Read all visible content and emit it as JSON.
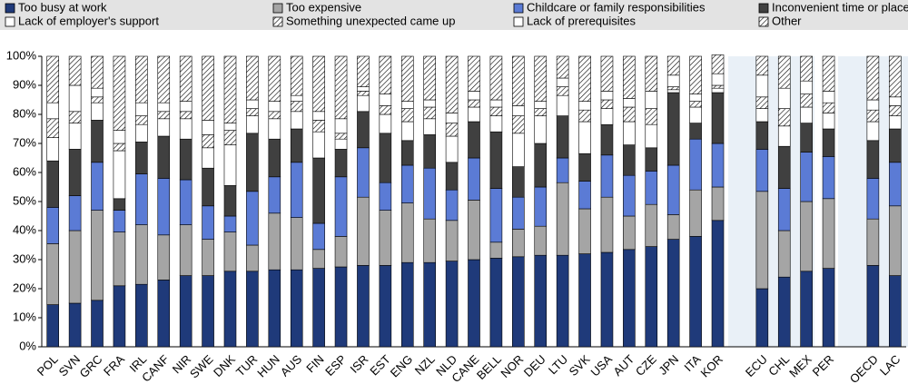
{
  "chart_data": {
    "type": "stacked_bar",
    "categories": [
      "POL",
      "SVN",
      "GRC",
      "FRA",
      "IRL",
      "CANF",
      "NIR",
      "SWE",
      "DNK",
      "TUR",
      "HUN",
      "AUS",
      "FIN",
      "ESP",
      "ISR",
      "EST",
      "ENG",
      "NZL",
      "NLD",
      "CANE",
      "BELL",
      "NOR",
      "DEU",
      "LTU",
      "SVK",
      "USA",
      "AUT",
      "CZE",
      "JPN",
      "ITA",
      "KOR",
      null,
      "ECU",
      "CHL",
      "MEX",
      "PER",
      null,
      "OECD",
      "LAC"
    ],
    "series": [
      {
        "name": "Too busy at work",
        "color": "#1f3a7a",
        "hatch": false,
        "values": [
          14.5,
          15,
          16,
          21,
          21.5,
          23,
          24.5,
          24.5,
          26,
          26,
          26.5,
          26.5,
          27,
          27.5,
          28,
          28,
          29,
          29,
          29.5,
          30,
          30.5,
          31,
          31.5,
          31.5,
          32,
          32.5,
          33.5,
          34.5,
          37,
          38,
          43.5,
          null,
          20,
          24,
          26,
          27,
          null,
          28,
          24.5
        ]
      },
      {
        "name": "Too expensive",
        "color": "#a5a5a5",
        "hatch": false,
        "values": [
          21,
          25,
          31,
          18.5,
          20.5,
          15.5,
          17.5,
          12.5,
          13.5,
          9,
          19.5,
          18,
          6.5,
          10.5,
          23.5,
          19,
          20.5,
          15,
          14,
          20.5,
          5.5,
          9.5,
          10,
          25,
          15.5,
          19,
          11.5,
          14.5,
          8.5,
          16,
          11.5,
          null,
          33.5,
          16,
          24,
          24,
          null,
          16,
          24
        ]
      },
      {
        "name": "Childcare or family responsibilities",
        "color": "#5b7bd5",
        "hatch": false,
        "values": [
          12.5,
          12,
          16.5,
          7.5,
          17.5,
          19.5,
          15.5,
          11.5,
          5.5,
          18.5,
          12.5,
          19,
          9,
          20.5,
          17,
          9.5,
          13,
          17.5,
          10.5,
          14.5,
          18.5,
          11,
          13.5,
          8.5,
          9.5,
          14.5,
          14,
          11.5,
          17,
          17.5,
          15,
          null,
          14.5,
          14.5,
          17,
          14.5,
          null,
          14,
          15
        ]
      },
      {
        "name": "Inconvenient time or place",
        "color": "#404040",
        "hatch": false,
        "values": [
          16,
          16,
          14.5,
          4,
          11,
          14.5,
          14,
          13,
          10.5,
          20,
          13,
          11.5,
          22.5,
          9.5,
          12.5,
          17,
          8.5,
          11.5,
          9.5,
          12.5,
          19.5,
          10.5,
          15,
          14.5,
          9.5,
          10.5,
          10.5,
          8,
          25,
          5.5,
          17.5,
          null,
          9.5,
          14.5,
          10,
          9.5,
          null,
          13,
          11.5
        ]
      },
      {
        "name": "Lack of employer's support",
        "color": "#ffffff",
        "hatch": false,
        "values": [
          8,
          9,
          6,
          16.5,
          6,
          6,
          7,
          7,
          14,
          6,
          7,
          6,
          9,
          3.5,
          5.5,
          6.5,
          6.5,
          5.5,
          9,
          5,
          5.5,
          11.5,
          9.5,
          7,
          11,
          5.5,
          8,
          8,
          1,
          5.5,
          1.5,
          null,
          4.5,
          7,
          5.5,
          5.5,
          null,
          6.5,
          4.5
        ]
      },
      {
        "name": "Something unexpected came up",
        "color": "#ffffff",
        "hatch": true,
        "values": [
          6.5,
          4,
          2,
          2.5,
          3,
          2.5,
          2.5,
          4.5,
          5,
          2.5,
          2.5,
          3.5,
          4,
          2,
          1.5,
          3,
          4.5,
          4,
          4.5,
          2.5,
          3,
          6,
          2.5,
          3,
          4,
          3,
          5,
          5.5,
          1,
          2,
          1,
          null,
          4,
          6,
          4.5,
          3.5,
          null,
          4,
          3.5
        ]
      },
      {
        "name": "Lack of prerequisites",
        "color": "#ffffff",
        "hatch": false,
        "values": [
          5.5,
          9,
          3,
          4.5,
          4.5,
          3,
          3.5,
          5,
          2.5,
          3,
          3.5,
          2,
          3,
          5,
          1.5,
          4,
          2.5,
          2.5,
          3.5,
          3,
          2.5,
          3.5,
          2.5,
          3,
          3,
          3,
          3,
          6,
          4,
          2.5,
          4,
          null,
          7.5,
          7,
          4.5,
          4,
          null,
          3.5,
          3
        ]
      },
      {
        "name": "Other",
        "color": "#ffffff",
        "hatch": true,
        "values": [
          16,
          10,
          11,
          25.5,
          16,
          16,
          15.5,
          22,
          23,
          15,
          15.5,
          13.5,
          19,
          21.5,
          10.5,
          13,
          15.5,
          15,
          19.5,
          12,
          15,
          17,
          15.5,
          7.5,
          15.5,
          12,
          14.5,
          12,
          6.5,
          13,
          6.5,
          null,
          6.5,
          11,
          8.5,
          12,
          null,
          15,
          14
        ]
      }
    ],
    "ylim": [
      0,
      100
    ],
    "yticks": [
      {
        "value": 0,
        "label": "0%"
      },
      {
        "value": 10,
        "label": "10%"
      },
      {
        "value": 20,
        "label": "20%"
      },
      {
        "value": 30,
        "label": "30%"
      },
      {
        "value": 40,
        "label": "40%"
      },
      {
        "value": 50,
        "label": "50%"
      },
      {
        "value": 60,
        "label": "60%"
      },
      {
        "value": 70,
        "label": "70%"
      },
      {
        "value": 80,
        "label": "80%"
      },
      {
        "value": 90,
        "label": "90%"
      },
      {
        "value": 100,
        "label": "100%"
      }
    ],
    "grid": false
  }
}
